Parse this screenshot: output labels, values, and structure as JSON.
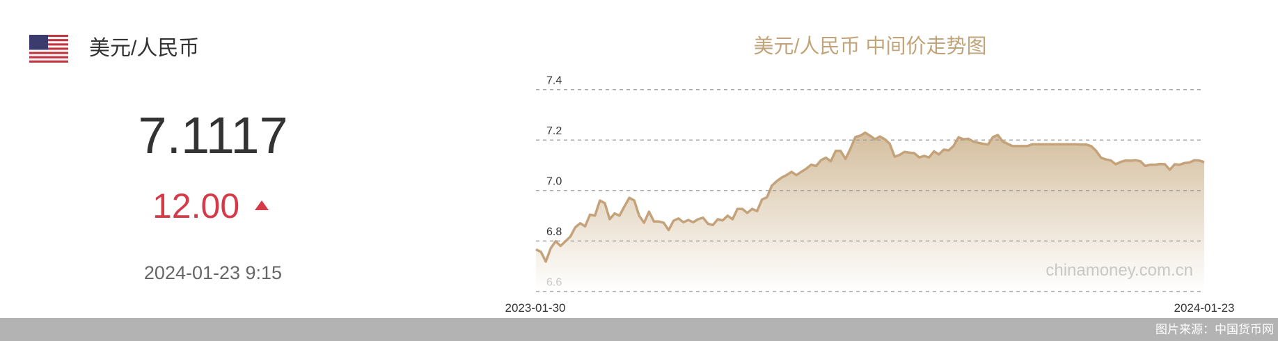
{
  "left_panel": {
    "flag_icon": "us-flag-icon",
    "pair": "美元/人民币",
    "rate": "7.1117",
    "change": "12.00",
    "change_direction": "up",
    "change_color": "#d63a48",
    "datetime": "2024-01-23 9:15"
  },
  "footer": {
    "source": "图片来源：中国货币网"
  },
  "chart_data": {
    "type": "area",
    "title": "美元/人民币 中间价走势图",
    "watermark": "chinamoney.com.cn",
    "x_tick_labels": [
      "2023-01-30",
      "2024-01-23"
    ],
    "y_ticks": [
      "6.6",
      "6.8",
      "7.0",
      "7.2",
      "7.4"
    ],
    "ylim": [
      6.6,
      7.4
    ],
    "grid": true,
    "line_color": "#c4a27a",
    "series": [
      {
        "values": [
          6.766,
          6.757,
          6.718,
          6.771,
          6.799,
          6.78,
          6.799,
          6.817,
          6.854,
          6.87,
          6.858,
          6.904,
          6.9,
          6.96,
          6.95,
          6.886,
          6.909,
          6.9,
          6.937,
          6.971,
          6.96,
          6.9,
          6.872,
          6.916,
          6.877,
          6.877,
          6.872,
          6.843,
          6.88,
          6.889,
          6.874,
          6.883,
          6.874,
          6.886,
          6.892,
          6.868,
          6.863,
          6.886,
          6.881,
          6.9,
          6.886,
          6.927,
          6.927,
          6.911,
          6.927,
          6.918,
          6.964,
          6.973,
          7.019,
          7.037,
          7.051,
          7.061,
          7.074,
          7.061,
          7.074,
          7.086,
          7.102,
          7.097,
          7.12,
          7.13,
          7.116,
          7.157,
          7.157,
          7.125,
          7.166,
          7.212,
          7.217,
          7.229,
          7.217,
          7.203,
          7.214,
          7.203,
          7.185,
          7.134,
          7.141,
          7.153,
          7.15,
          7.148,
          7.131,
          7.137,
          7.131,
          7.155,
          7.143,
          7.162,
          7.159,
          7.177,
          7.211,
          7.203,
          7.205,
          7.194,
          7.189,
          7.185,
          7.182,
          7.212,
          7.22,
          7.194,
          7.185,
          7.176,
          7.176,
          7.176,
          7.176,
          7.183,
          7.183,
          7.183,
          7.183,
          7.183,
          7.183,
          7.183,
          7.183,
          7.183,
          7.183,
          7.182,
          7.182,
          7.176,
          7.157,
          7.13,
          7.123,
          7.119,
          7.104,
          7.113,
          7.119,
          7.118,
          7.12,
          7.116,
          7.097,
          7.102,
          7.102,
          7.105,
          7.104,
          7.082,
          7.104,
          7.102,
          7.109,
          7.111,
          7.12,
          7.119,
          7.1117
        ]
      }
    ]
  }
}
